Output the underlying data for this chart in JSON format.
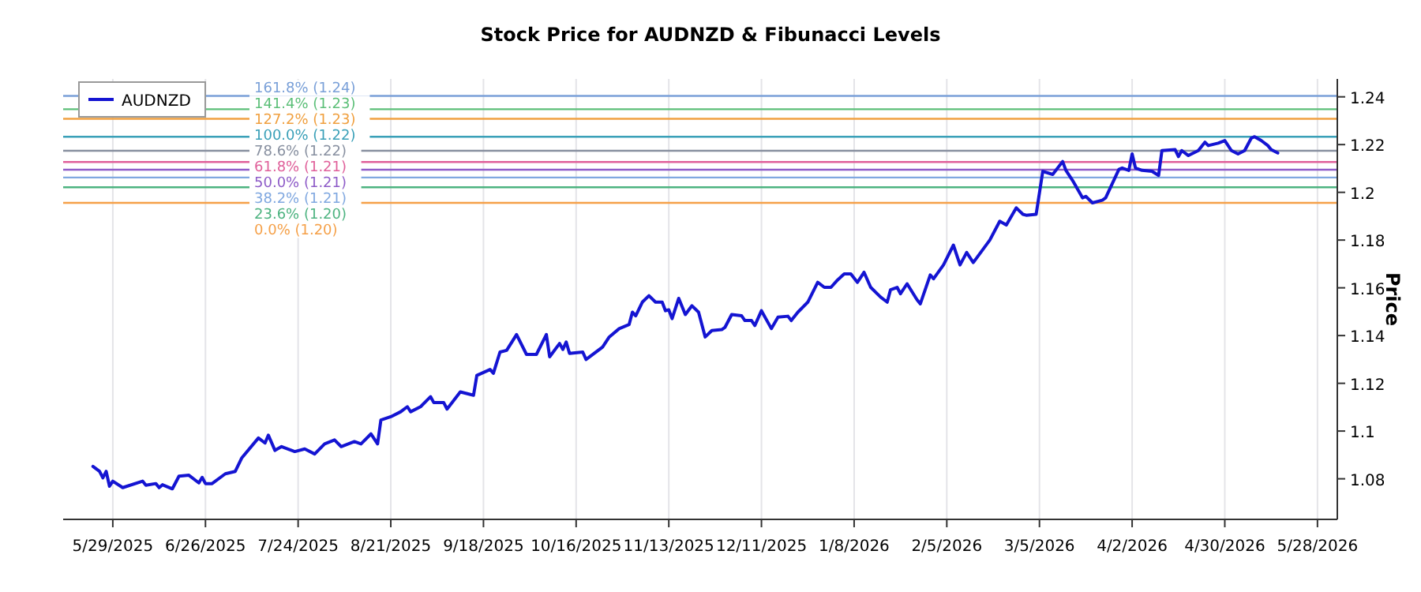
{
  "chart_data": {
    "type": "line",
    "title": "Stock Price for AUDNZD & Fibunacci Levels",
    "ylabel": "Price",
    "x": [
      "2025-05-23",
      "2025-05-25",
      "2025-05-26",
      "2025-05-27",
      "2025-05-28",
      "2025-05-29",
      "2025-06-01",
      "2025-06-07",
      "2025-06-08",
      "2025-06-11",
      "2025-06-12",
      "2025-06-13",
      "2025-06-16",
      "2025-06-18",
      "2025-06-21",
      "2025-06-24",
      "2025-06-25",
      "2025-06-26",
      "2025-06-28",
      "2025-07-02",
      "2025-07-05",
      "2025-07-07",
      "2025-07-12",
      "2025-07-14",
      "2025-07-15",
      "2025-07-17",
      "2025-07-19",
      "2025-07-23",
      "2025-07-26",
      "2025-07-29",
      "2025-08-01",
      "2025-08-04",
      "2025-08-06",
      "2025-08-10",
      "2025-08-12",
      "2025-08-15",
      "2025-08-17",
      "2025-08-18",
      "2025-08-21",
      "2025-08-24",
      "2025-08-26",
      "2025-08-27",
      "2025-08-30",
      "2025-09-02",
      "2025-09-03",
      "2025-09-06",
      "2025-09-07",
      "2025-09-11",
      "2025-09-15",
      "2025-09-16",
      "2025-09-20",
      "2025-09-21",
      "2025-09-23",
      "2025-09-25",
      "2025-09-28",
      "2025-10-01",
      "2025-10-04",
      "2025-10-07",
      "2025-10-08",
      "2025-10-11",
      "2025-10-12",
      "2025-10-13",
      "2025-10-14",
      "2025-10-18",
      "2025-10-19",
      "2025-10-24",
      "2025-10-26",
      "2025-10-29",
      "2025-11-01",
      "2025-11-02",
      "2025-11-03",
      "2025-11-05",
      "2025-11-07",
      "2025-11-09",
      "2025-11-11",
      "2025-11-12",
      "2025-11-13",
      "2025-11-14",
      "2025-11-16",
      "2025-11-18",
      "2025-11-20",
      "2025-11-22",
      "2025-11-24",
      "2025-11-26",
      "2025-11-29",
      "2025-11-30",
      "2025-12-02",
      "2025-12-05",
      "2025-12-06",
      "2025-12-08",
      "2025-12-09",
      "2025-12-11",
      "2025-12-14",
      "2025-12-16",
      "2025-12-19",
      "2025-12-20",
      "2025-12-22",
      "2025-12-25",
      "2025-12-28",
      "2025-12-30",
      "2026-01-01",
      "2026-01-03",
      "2026-01-05",
      "2026-01-07",
      "2026-01-09",
      "2026-01-10",
      "2026-01-11",
      "2026-01-13",
      "2026-01-16",
      "2026-01-18",
      "2026-01-19",
      "2026-01-21",
      "2026-01-22",
      "2026-01-24",
      "2026-01-27",
      "2026-01-28",
      "2026-01-31",
      "2026-02-01",
      "2026-02-04",
      "2026-02-07",
      "2026-02-09",
      "2026-02-11",
      "2026-02-13",
      "2026-02-18",
      "2026-02-21",
      "2026-02-23",
      "2026-02-26",
      "2026-02-28",
      "2026-03-01",
      "2026-03-04",
      "2026-03-06",
      "2026-03-09",
      "2026-03-12",
      "2026-03-13",
      "2026-03-15",
      "2026-03-18",
      "2026-03-19",
      "2026-03-21",
      "2026-03-24",
      "2026-03-25",
      "2026-03-29",
      "2026-03-30",
      "2026-04-01",
      "2026-04-02",
      "2026-04-03",
      "2026-04-05",
      "2026-04-08",
      "2026-04-10",
      "2026-04-11",
      "2026-04-15",
      "2026-04-16",
      "2026-04-17",
      "2026-04-19",
      "2026-04-22",
      "2026-04-24",
      "2026-04-25",
      "2026-04-28",
      "2026-04-30",
      "2026-05-02",
      "2026-05-04",
      "2026-05-06",
      "2026-05-08",
      "2026-05-09",
      "2026-05-11",
      "2026-05-13",
      "2026-05-14",
      "2026-05-16"
    ],
    "series": [
      {
        "name": "AUDNZD",
        "color": "#1414d2",
        "values": [
          1.0852,
          1.0831,
          1.0804,
          1.0831,
          1.0769,
          1.079,
          1.0763,
          1.079,
          1.0773,
          1.078,
          1.0763,
          1.0775,
          1.0758,
          1.0811,
          1.0815,
          1.0783,
          1.0806,
          1.078,
          1.078,
          1.0821,
          1.0831,
          1.0888,
          1.0971,
          1.095,
          1.0983,
          1.0919,
          1.0935,
          1.0914,
          1.0925,
          1.0904,
          1.0946,
          1.0963,
          1.0935,
          1.0956,
          1.0946,
          1.0988,
          1.0946,
          1.1046,
          1.106,
          1.1081,
          1.1102,
          1.1081,
          1.1102,
          1.1144,
          1.1119,
          1.1119,
          1.1092,
          1.1164,
          1.115,
          1.1233,
          1.1258,
          1.1242,
          1.1331,
          1.1338,
          1.1404,
          1.1321,
          1.1321,
          1.1404,
          1.1311,
          1.1367,
          1.1342,
          1.1373,
          1.1325,
          1.1331,
          1.13,
          1.1352,
          1.1394,
          1.1429,
          1.1446,
          1.1498,
          1.1483,
          1.154,
          1.1567,
          1.154,
          1.154,
          1.1504,
          1.1508,
          1.1471,
          1.1556,
          1.1488,
          1.1525,
          1.1498,
          1.1394,
          1.1421,
          1.1425,
          1.1435,
          1.1488,
          1.1483,
          1.1463,
          1.1463,
          1.1442,
          1.1504,
          1.1429,
          1.1477,
          1.1481,
          1.1463,
          1.1498,
          1.154,
          1.1623,
          1.1602,
          1.1602,
          1.1633,
          1.1658,
          1.1658,
          1.1623,
          1.1644,
          1.1665,
          1.1602,
          1.1561,
          1.154,
          1.1592,
          1.1602,
          1.1575,
          1.1617,
          1.155,
          1.1533,
          1.1654,
          1.1638,
          1.1696,
          1.1779,
          1.1696,
          1.1748,
          1.1706,
          1.18,
          1.1879,
          1.1863,
          1.1935,
          1.1908,
          1.1904,
          1.1908,
          1.2088,
          1.2075,
          1.2129,
          1.2092,
          1.205,
          1.1977,
          1.1983,
          1.1956,
          1.1967,
          1.1977,
          1.2096,
          1.2102,
          1.2092,
          1.2161,
          1.2102,
          1.2092,
          1.2088,
          1.2071,
          1.2175,
          1.2179,
          1.215,
          1.2175,
          1.2154,
          1.2175,
          1.221,
          1.2196,
          1.2206,
          1.2217,
          1.2175,
          1.2161,
          1.2175,
          1.2227,
          1.2233,
          1.2217,
          1.2196,
          1.2179,
          1.2165
        ]
      }
    ],
    "xlim": [
      "2025-05-14",
      "2026-06-03"
    ],
    "xticks": [
      {
        "value": "2025-05-29",
        "label": "5/29/2025"
      },
      {
        "value": "2025-06-26",
        "label": "6/26/2025"
      },
      {
        "value": "2025-07-24",
        "label": "7/24/2025"
      },
      {
        "value": "2025-08-21",
        "label": "8/21/2025"
      },
      {
        "value": "2025-09-18",
        "label": "9/18/2025"
      },
      {
        "value": "2025-10-16",
        "label": "10/16/2025"
      },
      {
        "value": "2025-11-13",
        "label": "11/13/2025"
      },
      {
        "value": "2025-12-11",
        "label": "12/11/2025"
      },
      {
        "value": "2026-01-08",
        "label": "1/8/2026"
      },
      {
        "value": "2026-02-05",
        "label": "2/5/2026"
      },
      {
        "value": "2026-03-05",
        "label": "3/5/2026"
      },
      {
        "value": "2026-04-02",
        "label": "4/2/2026"
      },
      {
        "value": "2026-04-30",
        "label": "4/30/2026"
      },
      {
        "value": "2026-05-28",
        "label": "5/28/2026"
      }
    ],
    "ylim": [
      1.063,
      1.2475
    ],
    "yticks": [
      1.08,
      1.1,
      1.12,
      1.14,
      1.16,
      1.18,
      1.2,
      1.22,
      1.24
    ],
    "ref_lines": [
      {
        "axis": "y",
        "value": 1.1956,
        "label": "0.0% (1.20)",
        "color": "#f5a048"
      },
      {
        "axis": "y",
        "value": 1.2021,
        "label": "23.6% (1.20)",
        "color": "#4db380"
      },
      {
        "axis": "y",
        "value": 1.2062,
        "label": "38.2% (1.21)",
        "color": "#80a8e0"
      },
      {
        "axis": "y",
        "value": 1.2095,
        "label": "50.0% (1.21)",
        "color": "#8e5cc8"
      },
      {
        "axis": "y",
        "value": 1.2127,
        "label": "61.8% (1.21)",
        "color": "#e0609a"
      },
      {
        "axis": "y",
        "value": 1.2174,
        "label": "78.6% (1.22)",
        "color": "#8890a0"
      },
      {
        "axis": "y",
        "value": 1.2233,
        "label": "100.0% (1.22)",
        "color": "#3aa0b8"
      },
      {
        "axis": "y",
        "value": 1.2308,
        "label": "127.2% (1.23)",
        "color": "#f0a040"
      },
      {
        "axis": "y",
        "value": 1.2348,
        "label": "141.4% (1.23)",
        "color": "#5cbf78"
      },
      {
        "axis": "y",
        "value": 1.2404,
        "label": "161.8% (1.24)",
        "color": "#7aa0d8"
      }
    ],
    "grid": "x",
    "legend": "top left",
    "line_style": "solid",
    "marker": "none"
  }
}
